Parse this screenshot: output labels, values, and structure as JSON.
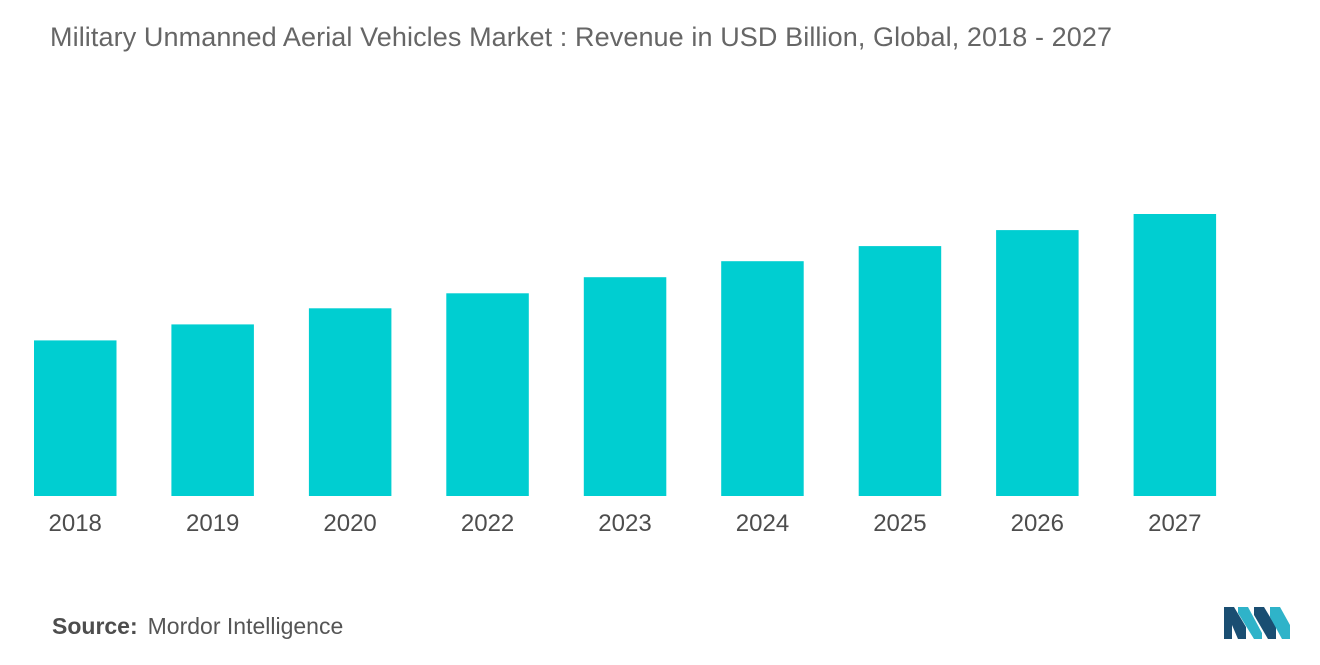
{
  "title": "Military Unmanned Aerial Vehicles Market : Revenue in USD Billion, Global, 2018 - 2027",
  "source": {
    "label": "Source:",
    "text": "Mordor Intelligence"
  },
  "logo": {
    "icon": "mordor-intelligence-logo",
    "colors": [
      "#1a4e72",
      "#2fb3c9"
    ]
  },
  "colors": {
    "bar": "#00ced1",
    "title": "#666666",
    "tick": "#4d4d4d"
  },
  "chart_data": {
    "type": "bar",
    "title": "Military Unmanned Aerial Vehicles Market : Revenue in USD Billion, Global, 2018 - 2027",
    "categories": [
      "2018",
      "2019",
      "2020",
      "2022",
      "2023",
      "2024",
      "2025",
      "2026",
      "2027"
    ],
    "values": [
      15.5,
      17.1,
      18.7,
      20.2,
      21.8,
      23.4,
      24.9,
      26.5,
      28.1
    ],
    "ylim": [
      0,
      28.1
    ],
    "xlabel": "",
    "ylabel": "",
    "grid": false,
    "legend": "none",
    "y_axis_visible": false
  }
}
